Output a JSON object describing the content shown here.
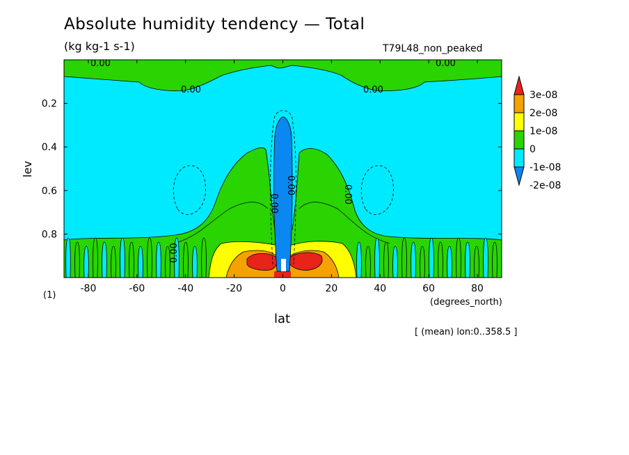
{
  "chart_data": {
    "type": "heatmap",
    "title": "Absolute humidity tendency — Total",
    "units": "(kg kg-1 s-1)",
    "run_label": "T79L48_non_peaked",
    "xlabel": "lat",
    "x_units": "(degrees_north)",
    "ylabel": "lev",
    "panel_label": "(1)",
    "mean_note": "[ (mean) lon:0..358.5 ]",
    "xlim": [
      -90,
      90
    ],
    "ylim": [
      1.0,
      0.0
    ],
    "x_ticks": [
      "-80",
      "-60",
      "-40",
      "-20",
      "0",
      "20",
      "40",
      "60",
      "80"
    ],
    "y_ticks": [
      "0.2",
      "0.4",
      "0.6",
      "0.8"
    ],
    "colorbar": {
      "levels": [
        "3e-08",
        "2e-08",
        "1e-08",
        "0",
        "-1e-08",
        "-2e-08"
      ],
      "colors": [
        "#e8231a",
        "#f5a100",
        "#ffff00",
        "#2ad400",
        "#00eaff",
        "#0a87f0"
      ]
    },
    "contour_labels": [
      "0.00",
      "0.00",
      "0.00",
      "0.00",
      "0.00",
      "0.00",
      "0.00",
      "0.00"
    ],
    "fill_colors": {
      "red": "#e8231a",
      "orange": "#f5a100",
      "yellow": "#ffff00",
      "green": "#2ad400",
      "cyan": "#00eaff",
      "blue": "#0a87f0"
    }
  }
}
